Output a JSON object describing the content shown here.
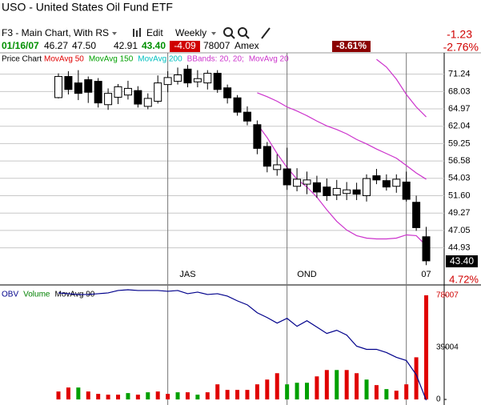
{
  "header": {
    "title": "USO - United States Oil Fund ETF",
    "layout": "F3 - Main Chart, With RS",
    "edit": "Edit",
    "period": "Weekly",
    "change": "-1.23",
    "change_pct": "-2.76%",
    "range_pct": "-8.61%",
    "date": "01/16/07",
    "open": "46.27",
    "high": "47.50",
    "low": "42.91",
    "close": "43.40",
    "net": "-4.09",
    "volume": "78007",
    "exchange": "Amex"
  },
  "chart_data": [
    {
      "type": "candlestick",
      "title": "Price Chart",
      "categories": [
        null,
        null,
        null,
        null,
        null,
        null,
        null,
        null,
        null,
        null,
        null,
        null,
        null,
        "JAS",
        null,
        null,
        null,
        null,
        null,
        null,
        null,
        null,
        null,
        null,
        null,
        "OND",
        null,
        null,
        null,
        null,
        null,
        null,
        null,
        null,
        null,
        null,
        null,
        "07"
      ],
      "open": [
        66.94,
        70.8,
        69.6,
        70.2,
        69.9,
        65.7,
        67,
        67.4,
        68.2,
        65.4,
        66.3,
        69.3,
        69.9,
        72.2,
        69.8,
        69.6,
        71.4,
        68.7,
        66.9,
        64.4,
        62.3,
        58.8,
        55.3,
        55.4,
        52.9,
        53.2,
        53.4,
        52.8,
        51.7,
        51.9,
        52.4,
        51.6,
        54.4,
        53.7,
        52.9,
        53.5,
        50.7,
        46.27
      ],
      "high": [
        71.4,
        71.8,
        72,
        70.8,
        70.5,
        68.6,
        69.4,
        70,
        69,
        67.7,
        71,
        71.8,
        72.5,
        73,
        72,
        72,
        72,
        69.3,
        67.4,
        65.4,
        63,
        59.5,
        57.6,
        58.6,
        55.5,
        55,
        54.4,
        54,
        53.8,
        53.5,
        53.4,
        54.6,
        55.4,
        54.6,
        54.6,
        55,
        51.6,
        47.5
      ],
      "low": [
        66.8,
        67.5,
        66.5,
        66,
        65.2,
        64.8,
        65.8,
        66.6,
        65.2,
        64.9,
        65.9,
        67.9,
        69.3,
        68.8,
        68.8,
        68.4,
        67.8,
        65.9,
        63.8,
        62.2,
        57.6,
        54.9,
        54.4,
        52.4,
        52.2,
        51.8,
        51.3,
        50.9,
        51,
        51,
        51,
        50.8,
        53.2,
        52.3,
        52,
        50.8,
        47,
        42.91
      ],
      "close": [
        70.8,
        68.4,
        67.7,
        67.9,
        66,
        67.7,
        68.9,
        68.6,
        65.8,
        66.8,
        69.6,
        70.6,
        71.1,
        69.6,
        70.4,
        71.4,
        68.4,
        66.9,
        64.4,
        62.9,
        58.5,
        55.8,
        56,
        53.1,
        53.9,
        53.8,
        52.1,
        51.6,
        52.6,
        52.4,
        51.8,
        54,
        53.8,
        52.8,
        53.9,
        51.1,
        47.4,
        43.4
      ],
      "up_color": "#ffffff",
      "down_color": "#000000",
      "lines": [
        {
          "color": "#cc33cc",
          "values": [
            null,
            null,
            null,
            null,
            null,
            null,
            null,
            null,
            null,
            null,
            null,
            null,
            null,
            null,
            null,
            null,
            null,
            null,
            null,
            null,
            null,
            null,
            null,
            null,
            null,
            null,
            null,
            null,
            null,
            null,
            null,
            null,
            74.1,
            72.6,
            70.3,
            67.5,
            65.3,
            63.6
          ]
        },
        {
          "color": "#cc33cc",
          "values": [
            null,
            null,
            null,
            null,
            null,
            null,
            null,
            null,
            null,
            null,
            null,
            null,
            null,
            null,
            null,
            null,
            null,
            null,
            null,
            null,
            67.8,
            67.1,
            66.3,
            65.3,
            64.6,
            63.8,
            62.9,
            62.1,
            61.5,
            60.8,
            59.9,
            59.2,
            58.4,
            57.7,
            57.0,
            55.9,
            54.8,
            53.9
          ]
        },
        {
          "color": "#cc33cc",
          "values": [
            null,
            null,
            null,
            null,
            null,
            null,
            null,
            null,
            null,
            null,
            null,
            null,
            null,
            null,
            null,
            null,
            null,
            null,
            null,
            null,
            62.4,
            60.2,
            57.7,
            55.6,
            53.9,
            52.8,
            51.4,
            49.7,
            48.2,
            47.1,
            46.4,
            46.1,
            46.0,
            46.0,
            46.1,
            46.5,
            46.4,
            45.2
          ]
        }
      ],
      "legend": [
        {
          "name": "MovAvg 50",
          "color": "#e00000"
        },
        {
          "name": "MovAvg 150",
          "color": "#00a000"
        },
        {
          "name": "MovAvg 200",
          "color": "#00c0c0"
        },
        {
          "name": "BBands: 20, 20;",
          "color": "#cc33cc"
        },
        {
          "name": "MovAvg 20",
          "color": "#cc33cc"
        }
      ],
      "log_scale": true,
      "ylim": [
        41.06,
        75.39
      ],
      "yticks": [
        71.24,
        68.03,
        64.97,
        62.04,
        59.25,
        56.58,
        54.03,
        {
          "value": 51.6,
          "label": "51.60"
        },
        49.27,
        47.05,
        44.93
      ],
      "grid": true,
      "price_label": "43.40",
      "change_label": "4.72%"
    },
    {
      "type": "bar",
      "legend": [
        {
          "name": "OBV",
          "color": "#00008b"
        },
        {
          "name": "Volume",
          "color": "#008000"
        },
        {
          "name": "MovAvg 90",
          "color": "#000000"
        }
      ],
      "values": [
        5955,
        8932,
        8932,
        5955,
        4168,
        3573,
        3573,
        4764,
        3573,
        5359,
        5955,
        4168,
        5359,
        5359,
        3573,
        5359,
        11314,
        7146,
        7146,
        7146,
        11314,
        14887,
        19651,
        11314,
        12505,
        12505,
        17269,
        22033,
        22033,
        22033,
        19651,
        14887,
        10719,
        7741,
        6550,
        11314,
        31561,
        78007
      ],
      "colors": [
        "#e00000",
        "#e00000",
        "#00a000",
        "#e00000",
        "#e00000",
        "#e00000",
        "#e00000",
        "#00a000",
        "#e00000",
        "#00a000",
        "#e00000",
        "#e00000",
        "#00a000",
        "#e00000",
        "#00a000",
        "#e00000",
        "#e00000",
        "#e00000",
        "#e00000",
        "#e00000",
        "#e00000",
        "#e00000",
        "#e00000",
        "#00a000",
        "#00a000",
        "#00a000",
        "#e00000",
        "#e00000",
        "#00a000",
        "#e00000",
        "#e00000",
        "#00a000",
        "#e00000",
        "#00a000",
        "#e00000",
        "#e00000",
        "#e00000",
        "#e00000"
      ],
      "line": {
        "color": "#00008b",
        "values": [
          79797,
          79202,
          78606,
          78606,
          79202,
          79797,
          81584,
          82179,
          81584,
          81584,
          81584,
          80988,
          81584,
          79202,
          80393,
          78606,
          79202,
          77415,
          73842,
          70865,
          64910,
          61337,
          57168,
          60741,
          54786,
          58955,
          54191,
          49427,
          51809,
          48236,
          39899,
          37517,
          37517,
          35135,
          31562,
          29180,
          18461,
          -596
        ]
      },
      "ylim": [
        -4168,
        84558
      ],
      "yticks": [
        0,
        39004,
        78007
      ]
    }
  ]
}
